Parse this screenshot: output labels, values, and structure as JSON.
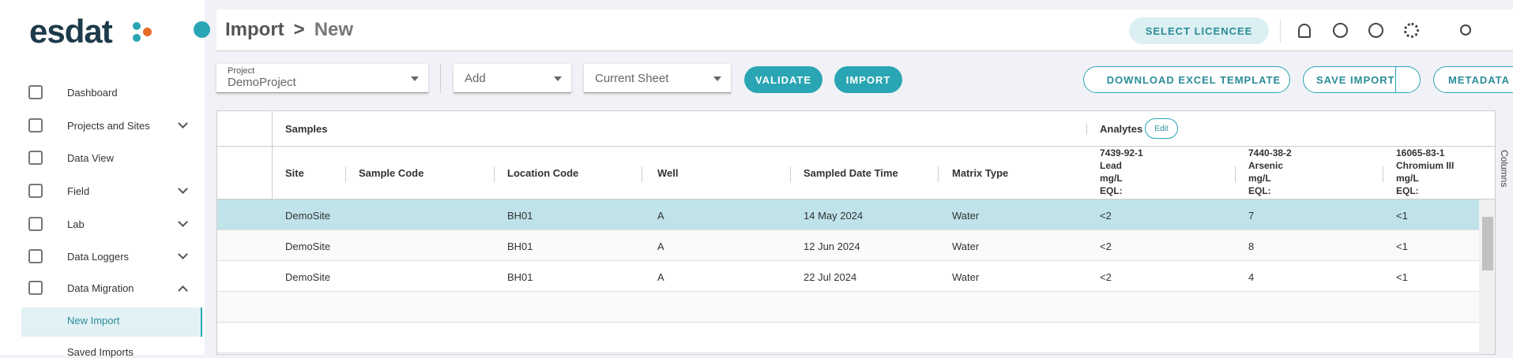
{
  "logo": "esdat",
  "nav": [
    {
      "label": "Dashboard"
    },
    {
      "label": "Projects and Sites"
    },
    {
      "label": "Data View"
    },
    {
      "label": "Field"
    },
    {
      "label": "Lab"
    },
    {
      "label": "Data Loggers"
    },
    {
      "label": "Data Migration"
    },
    {
      "label": "New Import"
    },
    {
      "label": "Saved Imports"
    }
  ],
  "header": {
    "title": "Import",
    "separator": ">",
    "subtitle": "New",
    "licence_button": "SELECT LICENCEE"
  },
  "toolbar": {
    "project_label": "Project",
    "project_value": "DemoProject",
    "add": "Add",
    "sheet": "Current Sheet",
    "validate": "VALIDATE",
    "import": "IMPORT",
    "download": "DOWNLOAD EXCEL TEMPLATE",
    "save": "SAVE IMPORT",
    "metadata": "METADATA"
  },
  "table": {
    "group_samples": "Samples",
    "group_analytes": "Analytes",
    "edit": "Edit",
    "side_label": "Columns",
    "columns": [
      "Site",
      "Sample Code",
      "Location Code",
      "Well",
      "Sampled Date Time",
      "Matrix Type"
    ],
    "analytes": [
      [
        "7439-92-1",
        "Lead",
        "mg/L",
        "EQL:"
      ],
      [
        "7440-38-2",
        "Arsenic",
        "mg/L",
        "EQL:"
      ],
      [
        "16065-83-1",
        "Chromium III",
        "mg/L",
        "EQL:"
      ]
    ],
    "rows": [
      [
        "DemoSite",
        "",
        "BH01",
        "A",
        "14 May 2024",
        "Water",
        "<2",
        "7",
        "<1"
      ],
      [
        "DemoSite",
        "",
        "BH01",
        "A",
        "12 Jun 2024",
        "Water",
        "<2",
        "8",
        "<1"
      ],
      [
        "DemoSite",
        "",
        "BH01",
        "A",
        "22 Jul 2024",
        "Water",
        "<2",
        "4",
        "<1"
      ]
    ]
  }
}
